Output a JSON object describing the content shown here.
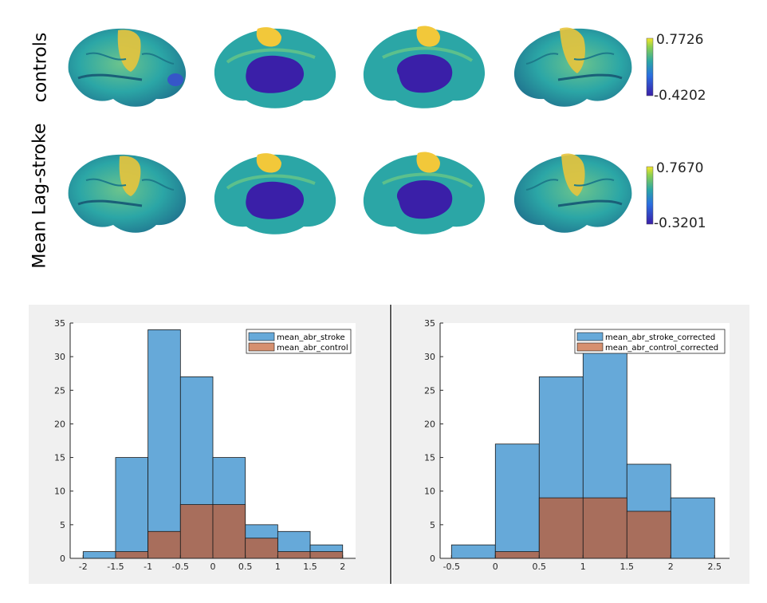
{
  "brain_rows": [
    {
      "label": "controls",
      "colorbar_max": "0.7726",
      "colorbar_min": "-0.4202"
    },
    {
      "label": "Mean Lag-stroke",
      "colorbar_max": "0.7670",
      "colorbar_min": "-0.3201"
    }
  ],
  "colors": {
    "stroke": "#66a9d9",
    "control": "#a86e5c",
    "control_legend": "#d6906f",
    "brain_base": "#2ba6a6",
    "brain_high": "#f2c83a",
    "brain_low": "#3a1fa8"
  },
  "chart_data": [
    {
      "type": "bar",
      "subtype": "overlaid-histogram",
      "bin_edges": [
        -2,
        -1.5,
        -1,
        -0.5,
        0,
        0.5,
        1,
        1.5,
        2
      ],
      "series": [
        {
          "name": "mean_abr_stroke",
          "values": [
            1,
            15,
            34,
            27,
            15,
            5,
            4,
            2
          ]
        },
        {
          "name": "mean_abr_control",
          "values": [
            0,
            1,
            4,
            8,
            8,
            3,
            1,
            1
          ]
        }
      ],
      "xticks": [
        "-2",
        "-1.5",
        "-1",
        "-0.5",
        "0",
        "0.5",
        "1",
        "1.5",
        "2"
      ],
      "yticks": [
        "0",
        "5",
        "10",
        "15",
        "20",
        "25",
        "30",
        "35"
      ],
      "xlim": [
        -2.2,
        2.2
      ],
      "ylim": [
        0,
        35
      ],
      "legend_position": "top-right",
      "grid": false
    },
    {
      "type": "bar",
      "subtype": "overlaid-histogram",
      "bin_edges": [
        -0.5,
        0,
        0.5,
        1,
        1.5,
        2,
        2.5
      ],
      "series": [
        {
          "name": "mean_abr_stroke_corrected",
          "values": [
            2,
            17,
            27,
            31,
            14,
            9
          ]
        },
        {
          "name": "mean_abr_control_corrected",
          "values": [
            0,
            1,
            9,
            9,
            7,
            0
          ]
        }
      ],
      "xticks": [
        "-0.5",
        "0",
        "0.5",
        "1",
        "1.5",
        "2",
        "2.5"
      ],
      "yticks": [
        "0",
        "5",
        "10",
        "15",
        "20",
        "25",
        "30",
        "35"
      ],
      "xlim": [
        -0.63,
        2.67
      ],
      "ylim": [
        0,
        35
      ],
      "legend_position": "top-right",
      "grid": false
    }
  ]
}
